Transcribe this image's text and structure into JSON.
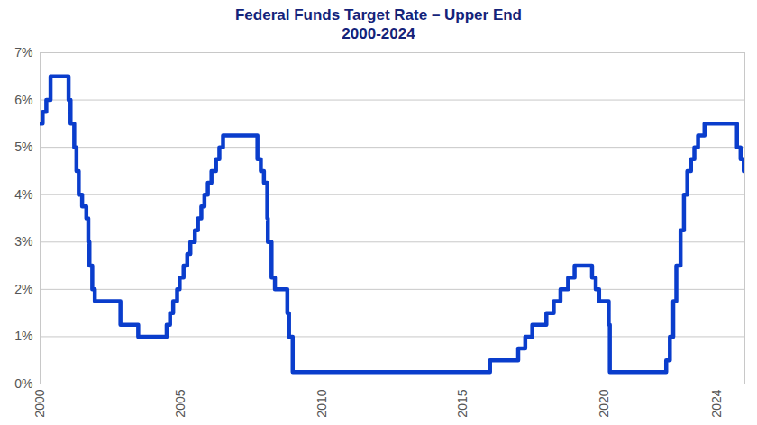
{
  "chart_data": {
    "type": "line",
    "title": "Federal Funds Target Rate – Upper End",
    "subtitle": "2000-2024",
    "x": [
      2000.0,
      2000.09,
      2000.22,
      2000.37,
      2001.01,
      2001.08,
      2001.21,
      2001.29,
      2001.37,
      2001.49,
      2001.64,
      2001.71,
      2001.75,
      2001.85,
      2001.94,
      2002.85,
      2003.48,
      2004.49,
      2004.61,
      2004.72,
      2004.86,
      2004.95,
      2005.09,
      2005.22,
      2005.33,
      2005.49,
      2005.6,
      2005.72,
      2005.83,
      2005.95,
      2006.08,
      2006.24,
      2006.36,
      2006.49,
      2007.71,
      2007.83,
      2007.94,
      2008.06,
      2008.08,
      2008.21,
      2008.33,
      2008.77,
      2008.83,
      2008.96,
      2015.96,
      2016.96,
      2017.21,
      2017.46,
      2017.96,
      2018.22,
      2018.46,
      2018.73,
      2018.96,
      2019.58,
      2019.71,
      2019.83,
      2020.17,
      2020.21,
      2022.21,
      2022.34,
      2022.46,
      2022.57,
      2022.72,
      2022.84,
      2022.96,
      2023.09,
      2023.21,
      2023.34,
      2023.57,
      2024.72,
      2024.85,
      2024.96
    ],
    "values": [
      5.5,
      5.75,
      6.0,
      6.5,
      6.0,
      5.5,
      5.0,
      4.5,
      4.0,
      3.75,
      3.5,
      3.0,
      2.5,
      2.0,
      1.75,
      1.25,
      1.0,
      1.25,
      1.5,
      1.75,
      2.0,
      2.25,
      2.5,
      2.75,
      3.0,
      3.25,
      3.5,
      3.75,
      4.0,
      4.25,
      4.5,
      4.75,
      5.0,
      5.25,
      4.75,
      4.5,
      4.25,
      3.5,
      3.0,
      2.25,
      2.0,
      1.5,
      1.0,
      0.25,
      0.5,
      0.75,
      1.0,
      1.25,
      1.5,
      1.75,
      2.0,
      2.25,
      2.5,
      2.25,
      2.0,
      1.75,
      1.25,
      0.25,
      0.5,
      1.0,
      1.75,
      2.5,
      3.25,
      4.0,
      4.5,
      4.75,
      5.0,
      5.25,
      5.5,
      5.0,
      4.75,
      4.5
    ],
    "color": "#0a3dcc",
    "xlim": [
      2000,
      2025
    ],
    "xticks": [
      2000,
      2005,
      2010,
      2015,
      2020,
      2024
    ],
    "ylim": [
      0,
      7
    ],
    "yticks": [
      {
        "value": 0,
        "label": "0%"
      },
      {
        "value": 1,
        "label": "1%"
      },
      {
        "value": 2,
        "label": "2%"
      },
      {
        "value": 3,
        "label": "3%"
      },
      {
        "value": 4,
        "label": "4%"
      },
      {
        "value": 5,
        "label": "5%"
      },
      {
        "value": 6,
        "label": "6%"
      },
      {
        "value": 7,
        "label": "7%"
      }
    ],
    "grid": true
  }
}
